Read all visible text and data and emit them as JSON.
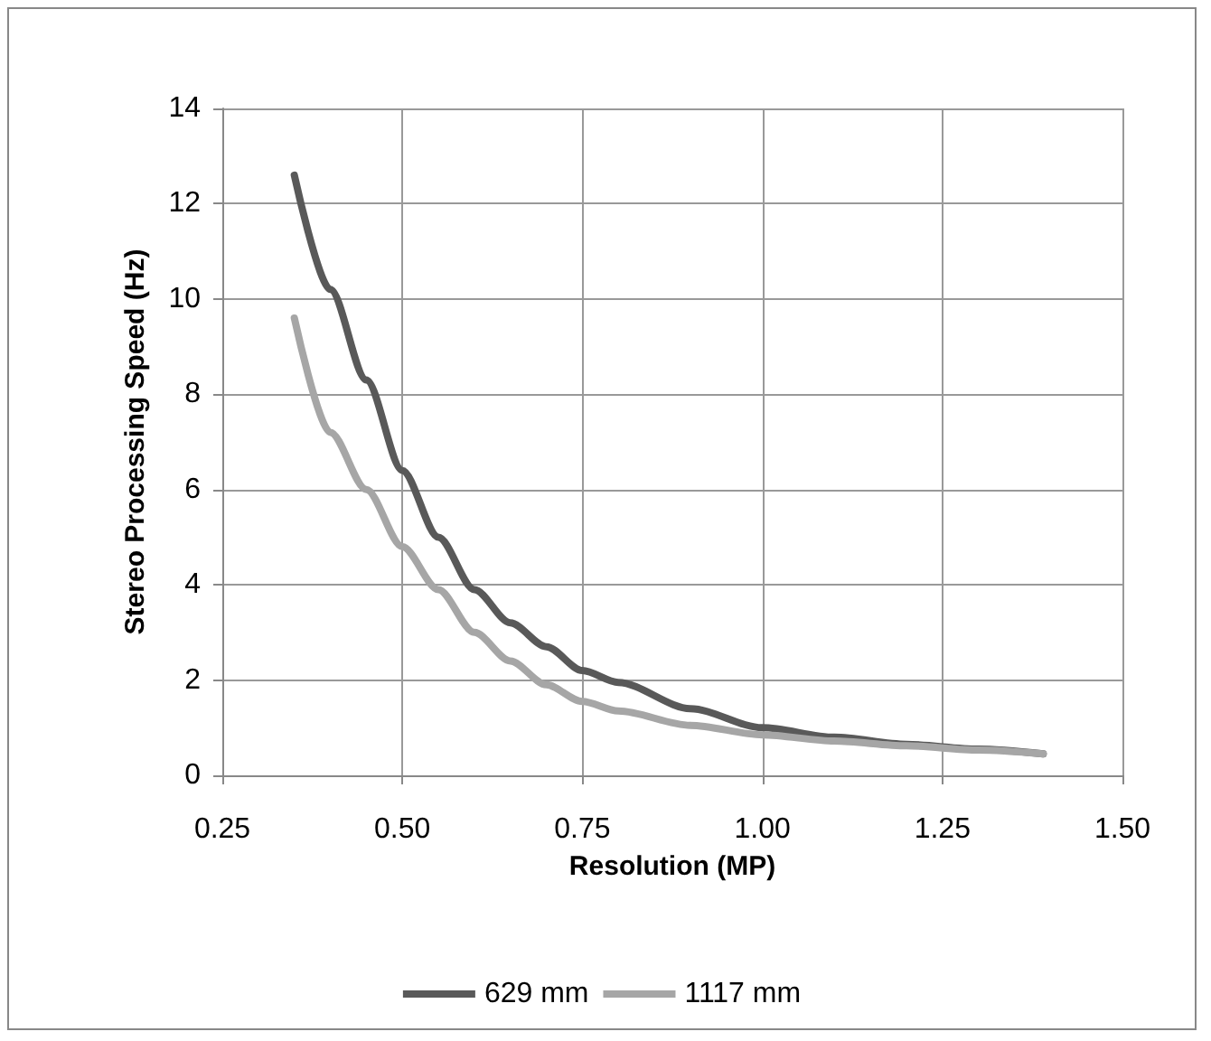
{
  "chart_data": {
    "type": "line",
    "xlabel": "Resolution (MP)",
    "ylabel": "Stereo Processing Speed (Hz)",
    "xlim": [
      0.25,
      1.5
    ],
    "xticks": [
      {
        "value": 0.25,
        "label": "0.25"
      },
      {
        "value": 0.5,
        "label": "0.50"
      },
      {
        "value": 0.75,
        "label": "0.75"
      },
      {
        "value": 1,
        "label": "1.00"
      },
      {
        "value": 1.25,
        "label": "1.25"
      },
      {
        "value": 1.5,
        "label": "1.50"
      }
    ],
    "ylim": [
      0,
      14
    ],
    "yticks": [
      0,
      2,
      4,
      6,
      8,
      10,
      12,
      14
    ],
    "grid": true,
    "legend": "bottom",
    "marker": "none",
    "line_style": "solid",
    "x": [
      0.35,
      0.4,
      0.45,
      0.5,
      0.55,
      0.6,
      0.65,
      0.7,
      0.75,
      0.8,
      0.9,
      1.0,
      1.1,
      1.2,
      1.3,
      1.39
    ],
    "series": [
      {
        "name": "629 mm",
        "color": "#595959",
        "values": [
          12.6,
          10.2,
          8.3,
          6.4,
          5.0,
          3.9,
          3.2,
          2.7,
          2.2,
          1.95,
          1.4,
          1.0,
          0.8,
          0.65,
          0.55,
          0.45
        ]
      },
      {
        "name": "1117 mm",
        "color": "#a6a6a6",
        "values": [
          9.6,
          7.2,
          6.0,
          4.8,
          3.9,
          3.0,
          2.4,
          1.9,
          1.55,
          1.35,
          1.05,
          0.85,
          0.72,
          0.62,
          0.53,
          0.45
        ]
      }
    ]
  }
}
